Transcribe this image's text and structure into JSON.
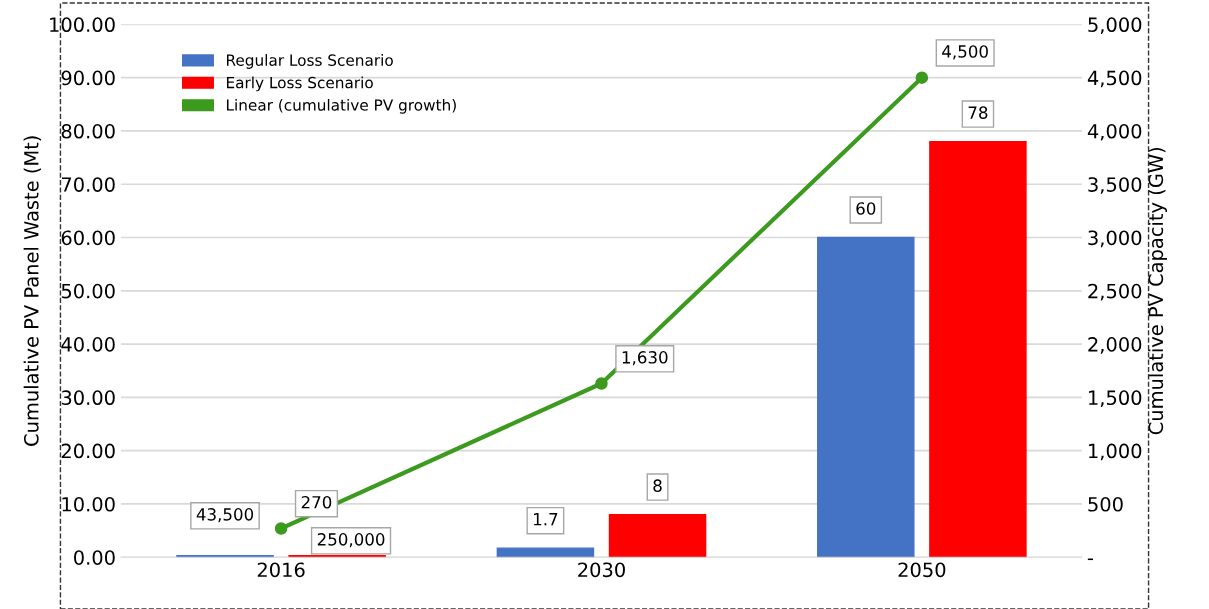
{
  "chart_data": {
    "type": "bar",
    "ylabel": "Cumulative PV Panel Waste (Mt)",
    "y2label": "Cumulative PV Capacity (GW)",
    "categories": [
      "2016",
      "2030",
      "2050"
    ],
    "series": [
      {
        "name": "Regular Loss Scenario",
        "color": "#4472c4",
        "values": [
          0.3,
          1.7,
          60
        ],
        "value_labels": [
          null,
          "1.7",
          "60"
        ]
      },
      {
        "name": "Early Loss Scenario",
        "color": "#ff0000",
        "values": [
          0.3,
          8,
          78
        ],
        "value_labels": [
          null,
          "8",
          "78"
        ]
      },
      {
        "name": "Linear (cumulative PV growth)",
        "type": "line",
        "axis": "y2",
        "color": "#3c9a1e",
        "marker": "circle",
        "values": [
          270,
          1630,
          4500
        ],
        "value_labels": [
          "270",
          "1,630",
          "4,500"
        ]
      }
    ],
    "ylim": [
      0,
      100
    ],
    "yticks": [
      {
        "value": 0,
        "label": "0.00"
      },
      {
        "value": 10,
        "label": "10.00"
      },
      {
        "value": 20,
        "label": "20.00"
      },
      {
        "value": 30,
        "label": "30.00"
      },
      {
        "value": 40,
        "label": "40.00"
      },
      {
        "value": 50,
        "label": "50.00"
      },
      {
        "value": 60,
        "label": "60.00"
      },
      {
        "value": 70,
        "label": "70.00"
      },
      {
        "value": 80,
        "label": "80.00"
      },
      {
        "value": 90,
        "label": "90.00"
      },
      {
        "value": 100,
        "label": "100.00"
      }
    ],
    "y2lim": [
      0,
      5000
    ],
    "y2ticks": [
      {
        "value": 0,
        "label": "-"
      },
      500,
      {
        "value": 1000,
        "label": "1,000"
      },
      {
        "value": 1500,
        "label": "1,500"
      },
      {
        "value": 2000,
        "label": "2,000"
      },
      {
        "value": 2500,
        "label": "2,500"
      },
      {
        "value": 3000,
        "label": "3,000"
      },
      {
        "value": 3500,
        "label": "3,500"
      },
      {
        "value": 4000,
        "label": "4,000"
      },
      {
        "value": 4500,
        "label": "4,500"
      },
      {
        "value": 5000,
        "label": "5,000"
      }
    ],
    "annotations": [
      "43,500",
      "250,000"
    ],
    "grid": "y",
    "legend": "top left"
  }
}
